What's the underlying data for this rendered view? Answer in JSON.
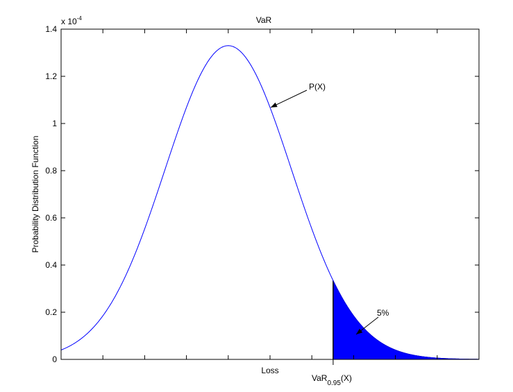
{
  "chart_data": {
    "type": "area",
    "title": "VaR",
    "xlabel": "Loss",
    "ylabel": "Probability Distribution Function",
    "y_scale_label": "x 10",
    "y_scale_exponent": "-4",
    "xlim": [
      0,
      10
    ],
    "ylim": [
      0,
      1.4
    ],
    "yticks": [
      "0",
      "0.2",
      "0.4",
      "0.6",
      "0.8",
      "1",
      "1.2",
      "1.4"
    ],
    "ytick_values": [
      0,
      0.2,
      0.4,
      0.6,
      0.8,
      1.0,
      1.2,
      1.4
    ],
    "xtick_values": [
      0,
      1,
      2,
      3,
      4,
      5,
      6,
      7,
      8,
      9,
      10
    ],
    "grid": false,
    "series": [
      {
        "name": "P(X)",
        "distribution": "normal",
        "mean": 4,
        "std": 1.51,
        "peak": 1.33,
        "color": "#0000ff"
      }
    ],
    "var_marker": {
      "x": 6.51,
      "label_main": "VaR",
      "label_sub": "0.95",
      "label_tail": "(X)",
      "fill_color": "#0000ff"
    },
    "annotations": [
      {
        "text": "P(X)",
        "target": "curve",
        "target_x": 5.0
      },
      {
        "text": "5%",
        "target": "tail-area"
      }
    ]
  }
}
